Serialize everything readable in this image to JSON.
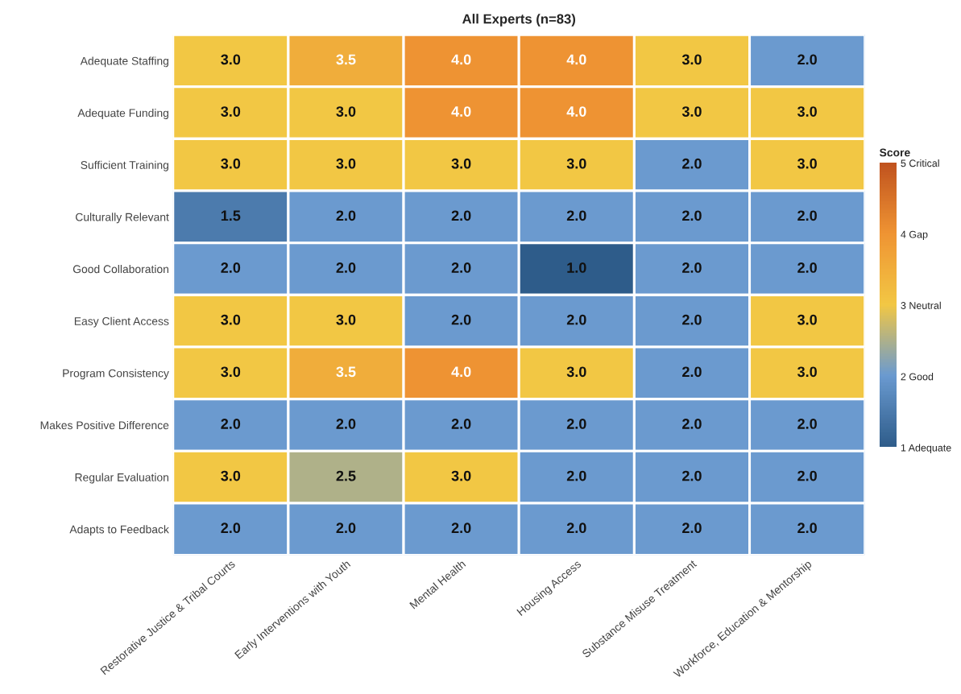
{
  "chart_data": {
    "type": "heatmap",
    "title": "All Experts (n=83)",
    "clabel": "Score",
    "categories": [
      "Restorative Justice & Tribal Courts",
      "Early Interventions with Youth",
      "Mental Health",
      "Housing Access",
      "Substance Misuse Treatment",
      "Workforce, Education & Mentorship"
    ],
    "y_categories": [
      "Adequate Staffing",
      "Adequate Funding",
      "Sufficient Training",
      "Culturally Relevant",
      "Good Collaboration",
      "Easy Client Access",
      "Program Consistency",
      "Makes Positive Difference",
      "Regular Evaluation",
      "Adapts to Feedback"
    ],
    "cells": [
      [
        3,
        3.5,
        4,
        4,
        3,
        2
      ],
      [
        3,
        3,
        4,
        4,
        3,
        3
      ],
      [
        3,
        3,
        3,
        3,
        2,
        3
      ],
      [
        1.5,
        2,
        2,
        2,
        2,
        2
      ],
      [
        2,
        2,
        2,
        1,
        2,
        2
      ],
      [
        3,
        3,
        2,
        2,
        2,
        3
      ],
      [
        3,
        3.5,
        4,
        3,
        2,
        3
      ],
      [
        2,
        2,
        2,
        2,
        2,
        2
      ],
      [
        3,
        2.5,
        3,
        2,
        2,
        2
      ],
      [
        2,
        2,
        2,
        2,
        2,
        2
      ]
    ],
    "cell_labels": [
      [
        "3.0",
        "3.5",
        "4.0",
        "4.0",
        "3.0",
        "2.0"
      ],
      [
        "3.0",
        "3.0",
        "4.0",
        "4.0",
        "3.0",
        "3.0"
      ],
      [
        "3.0",
        "3.0",
        "3.0",
        "3.0",
        "2.0",
        "3.0"
      ],
      [
        "1.5",
        "2.0",
        "2.0",
        "2.0",
        "2.0",
        "2.0"
      ],
      [
        "2.0",
        "2.0",
        "2.0",
        "1.0",
        "2.0",
        "2.0"
      ],
      [
        "3.0",
        "3.0",
        "2.0",
        "2.0",
        "2.0",
        "3.0"
      ],
      [
        "3.0",
        "3.5",
        "4.0",
        "3.0",
        "2.0",
        "3.0"
      ],
      [
        "2.0",
        "2.0",
        "2.0",
        "2.0",
        "2.0",
        "2.0"
      ],
      [
        "3.0",
        "2.5",
        "3.0",
        "2.0",
        "2.0",
        "2.0"
      ],
      [
        "2.0",
        "2.0",
        "2.0",
        "2.0",
        "2.0",
        "2.0"
      ]
    ],
    "clim": [
      1,
      5
    ],
    "cticks": [
      {
        "value": 1,
        "label": "1 Adequate"
      },
      {
        "value": 2,
        "label": "2 Good"
      },
      {
        "value": 3,
        "label": "3 Neutral"
      },
      {
        "value": 4,
        "label": "4 Gap"
      },
      {
        "value": 5,
        "label": "5 Critical"
      }
    ]
  }
}
